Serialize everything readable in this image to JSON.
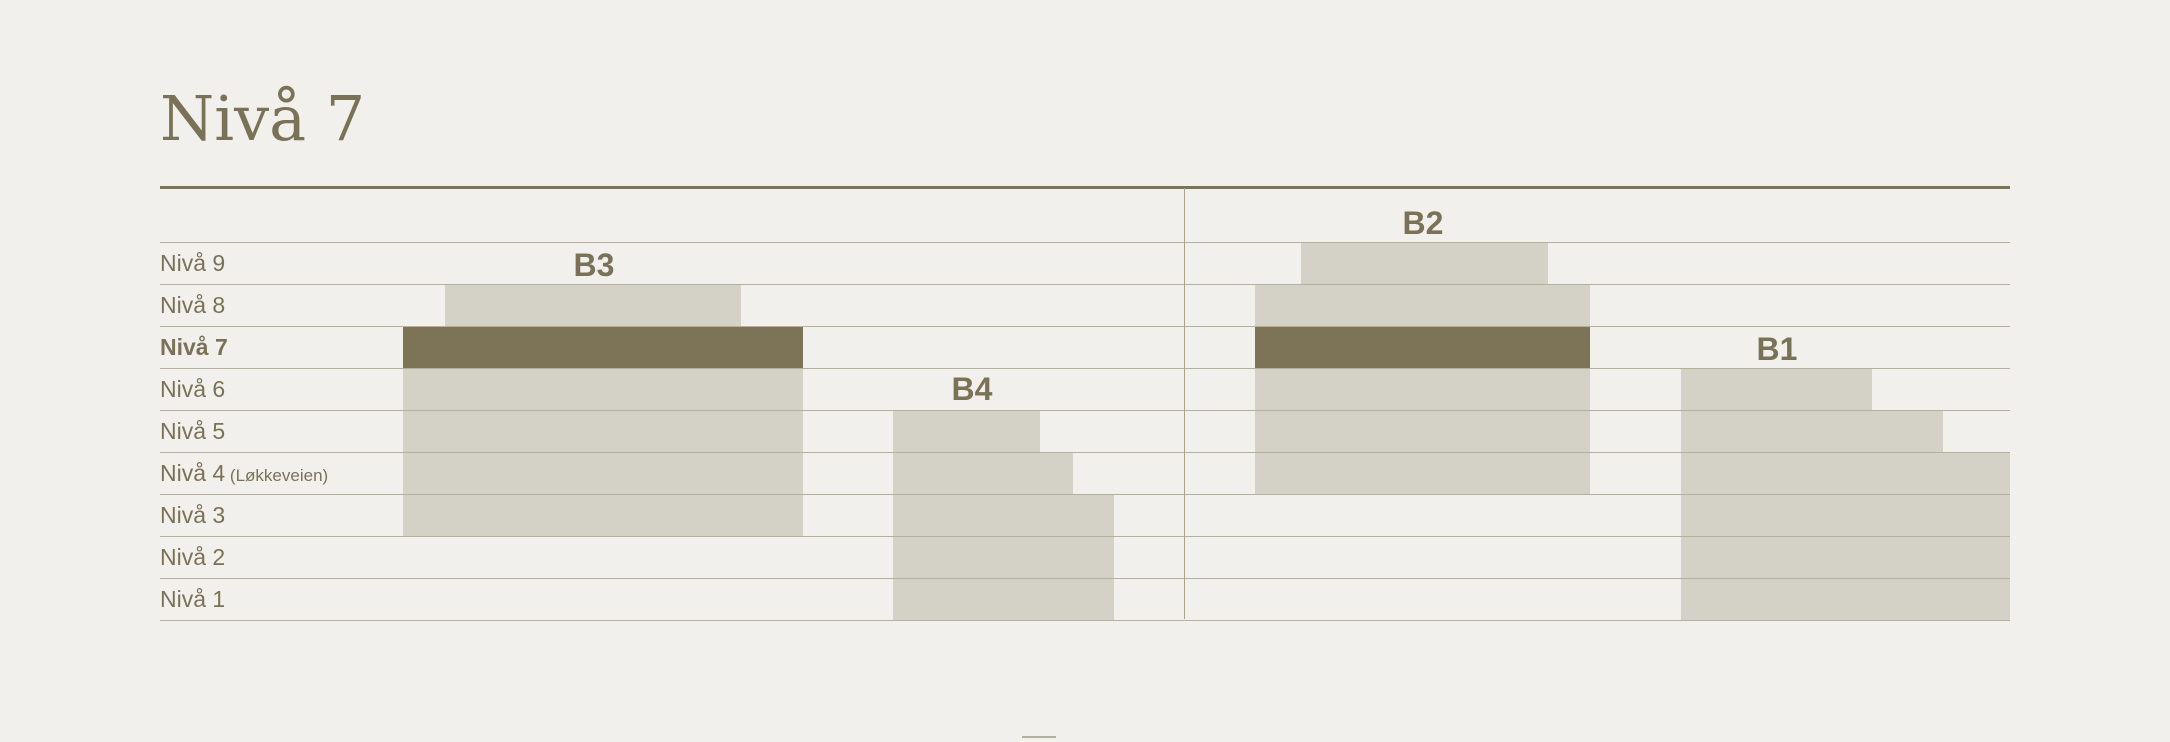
{
  "title": "Nivå 7",
  "current_level": "Nivå 7",
  "levels": [
    {
      "label": "Nivå 9",
      "note": ""
    },
    {
      "label": "Nivå 8",
      "note": ""
    },
    {
      "label": "Nivå 7",
      "note": ""
    },
    {
      "label": "Nivå 6",
      "note": ""
    },
    {
      "label": "Nivå 5",
      "note": ""
    },
    {
      "label": "Nivå 4",
      "note": "(Løkkeveien)"
    },
    {
      "label": "Nivå 3",
      "note": ""
    },
    {
      "label": "Nivå 2",
      "note": ""
    },
    {
      "label": "Nivå 1",
      "note": ""
    }
  ],
  "buildings": {
    "B3": "B3",
    "B4": "B4",
    "B2": "B2",
    "B1": "B1"
  },
  "colors": {
    "background": "#f2f0ec",
    "text": "#7a7256",
    "highlight": "#7d7356",
    "floor": "#d4d2c6",
    "rule": "#7d7356"
  }
}
